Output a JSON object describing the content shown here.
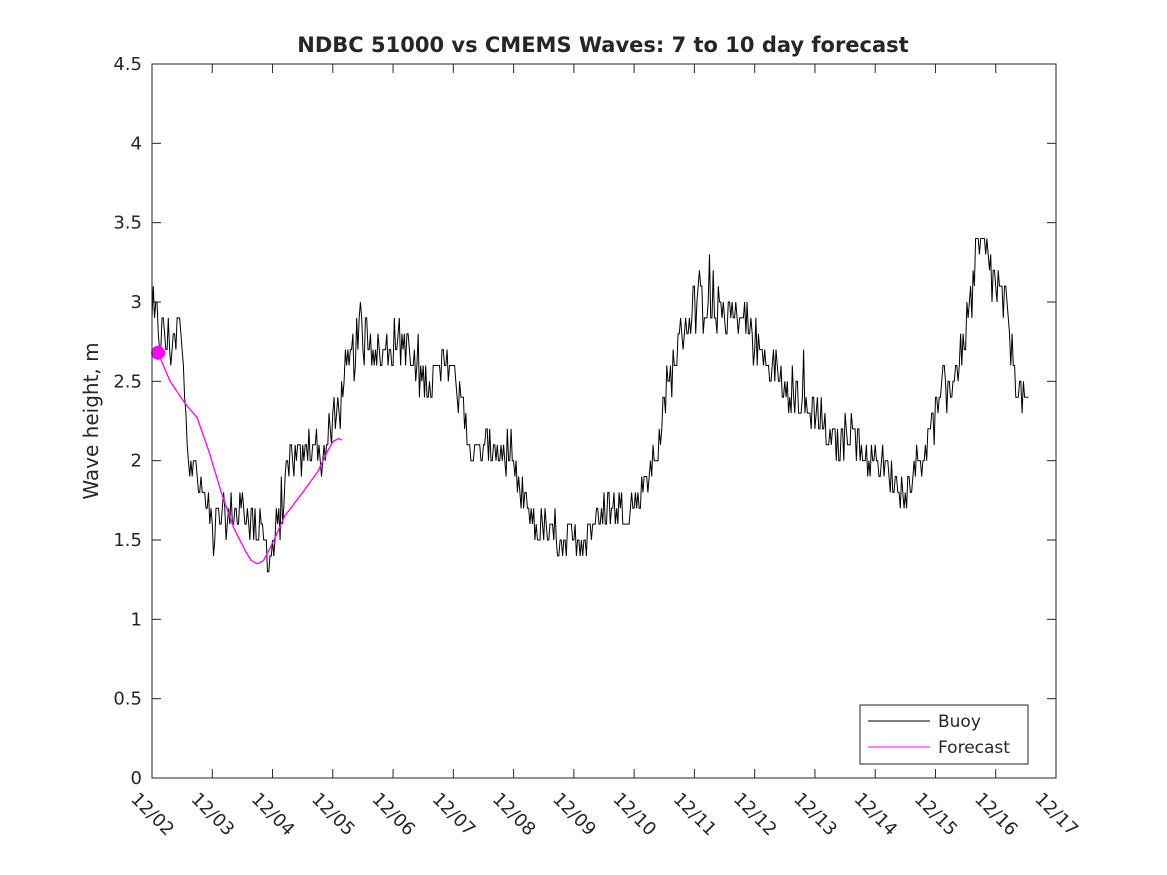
{
  "chart_data": {
    "type": "line",
    "title": "NDBC 51000 vs CMEMS Waves: 7 to 10 day forecast",
    "xlabel": "",
    "ylabel": "Wave height, m",
    "xlim": [
      0,
      15
    ],
    "ylim": [
      0,
      4.5
    ],
    "x_ticks": [
      "12/02",
      "12/03",
      "12/04",
      "12/05",
      "12/06",
      "12/07",
      "12/08",
      "12/09",
      "12/10",
      "12/11",
      "12/12",
      "12/13",
      "12/14",
      "12/15",
      "12/16",
      "12/17"
    ],
    "y_ticks": [
      "0",
      "0.5",
      "1",
      "1.5",
      "2",
      "2.5",
      "3",
      "3.5",
      "4",
      "4.5"
    ],
    "legend": {
      "location": "bottom-right",
      "entries": [
        "Buoy",
        "Forecast"
      ]
    },
    "series": [
      {
        "name": "Buoy",
        "color": "#000000",
        "x_unit": "days since 12/02",
        "anchor_points": [
          [
            0.0,
            2.9
          ],
          [
            0.2,
            2.8
          ],
          [
            0.4,
            2.7
          ],
          [
            0.45,
            2.9
          ],
          [
            0.6,
            2.1
          ],
          [
            0.8,
            1.8
          ],
          [
            1.0,
            1.6
          ],
          [
            1.3,
            1.65
          ],
          [
            1.5,
            1.7
          ],
          [
            1.8,
            1.55
          ],
          [
            1.9,
            1.42
          ],
          [
            2.0,
            1.45
          ],
          [
            2.1,
            1.6
          ],
          [
            2.3,
            2.0
          ],
          [
            2.5,
            2.0
          ],
          [
            2.7,
            2.15
          ],
          [
            2.8,
            2.0
          ],
          [
            3.0,
            2.2
          ],
          [
            3.2,
            2.45
          ],
          [
            3.4,
            2.75
          ],
          [
            3.6,
            2.8
          ],
          [
            3.8,
            2.65
          ],
          [
            4.0,
            2.75
          ],
          [
            4.2,
            2.75
          ],
          [
            4.4,
            2.5
          ],
          [
            4.6,
            2.5
          ],
          [
            4.8,
            2.55
          ],
          [
            4.95,
            2.65
          ],
          [
            5.1,
            2.4
          ],
          [
            5.3,
            2.05
          ],
          [
            5.5,
            2.05
          ],
          [
            5.7,
            2.1
          ],
          [
            6.0,
            1.9
          ],
          [
            6.2,
            1.7
          ],
          [
            6.4,
            1.55
          ],
          [
            6.6,
            1.55
          ],
          [
            6.8,
            1.5
          ],
          [
            7.0,
            1.5
          ],
          [
            7.2,
            1.55
          ],
          [
            7.4,
            1.62
          ],
          [
            7.6,
            1.72
          ],
          [
            7.8,
            1.7
          ],
          [
            8.0,
            1.72
          ],
          [
            8.2,
            1.9
          ],
          [
            8.4,
            2.1
          ],
          [
            8.6,
            2.5
          ],
          [
            8.8,
            2.85
          ],
          [
            9.0,
            2.95
          ],
          [
            9.2,
            3.0
          ],
          [
            9.4,
            2.95
          ],
          [
            9.6,
            2.9
          ],
          [
            9.8,
            2.9
          ],
          [
            10.0,
            2.75
          ],
          [
            10.2,
            2.6
          ],
          [
            10.4,
            2.55
          ],
          [
            10.6,
            2.45
          ],
          [
            10.8,
            2.35
          ],
          [
            11.0,
            2.3
          ],
          [
            11.2,
            2.15
          ],
          [
            11.4,
            2.1
          ],
          [
            11.6,
            2.2
          ],
          [
            11.8,
            2.05
          ],
          [
            12.0,
            1.98
          ],
          [
            12.2,
            1.93
          ],
          [
            12.4,
            1.85
          ],
          [
            12.5,
            1.78
          ],
          [
            12.6,
            1.9
          ],
          [
            12.8,
            2.05
          ],
          [
            13.0,
            2.25
          ],
          [
            13.2,
            2.45
          ],
          [
            13.4,
            2.65
          ],
          [
            13.55,
            2.9
          ],
          [
            13.7,
            3.3
          ],
          [
            13.8,
            3.3
          ],
          [
            13.9,
            3.2
          ],
          [
            14.0,
            3.1
          ],
          [
            14.2,
            2.9
          ],
          [
            14.35,
            2.5
          ],
          [
            14.5,
            2.35
          ],
          [
            14.55,
            2.3
          ]
        ]
      },
      {
        "name": "Forecast",
        "color": "#ff00ff",
        "x_unit": "days since 12/02",
        "points": [
          [
            0.1,
            2.68
          ],
          [
            0.3,
            2.5
          ],
          [
            0.55,
            2.36
          ],
          [
            0.75,
            2.27
          ],
          [
            0.95,
            2.05
          ],
          [
            1.15,
            1.8
          ],
          [
            1.35,
            1.58
          ],
          [
            1.55,
            1.43
          ],
          [
            1.65,
            1.37
          ],
          [
            1.75,
            1.35
          ],
          [
            1.85,
            1.37
          ],
          [
            2.0,
            1.48
          ],
          [
            2.2,
            1.65
          ],
          [
            2.5,
            1.8
          ],
          [
            2.75,
            1.93
          ],
          [
            2.9,
            2.05
          ],
          [
            3.0,
            2.12
          ],
          [
            3.1,
            2.14
          ],
          [
            3.15,
            2.13
          ]
        ],
        "marker": {
          "x": 0.1,
          "y": 2.68,
          "shape": "filled-circle"
        }
      }
    ]
  }
}
